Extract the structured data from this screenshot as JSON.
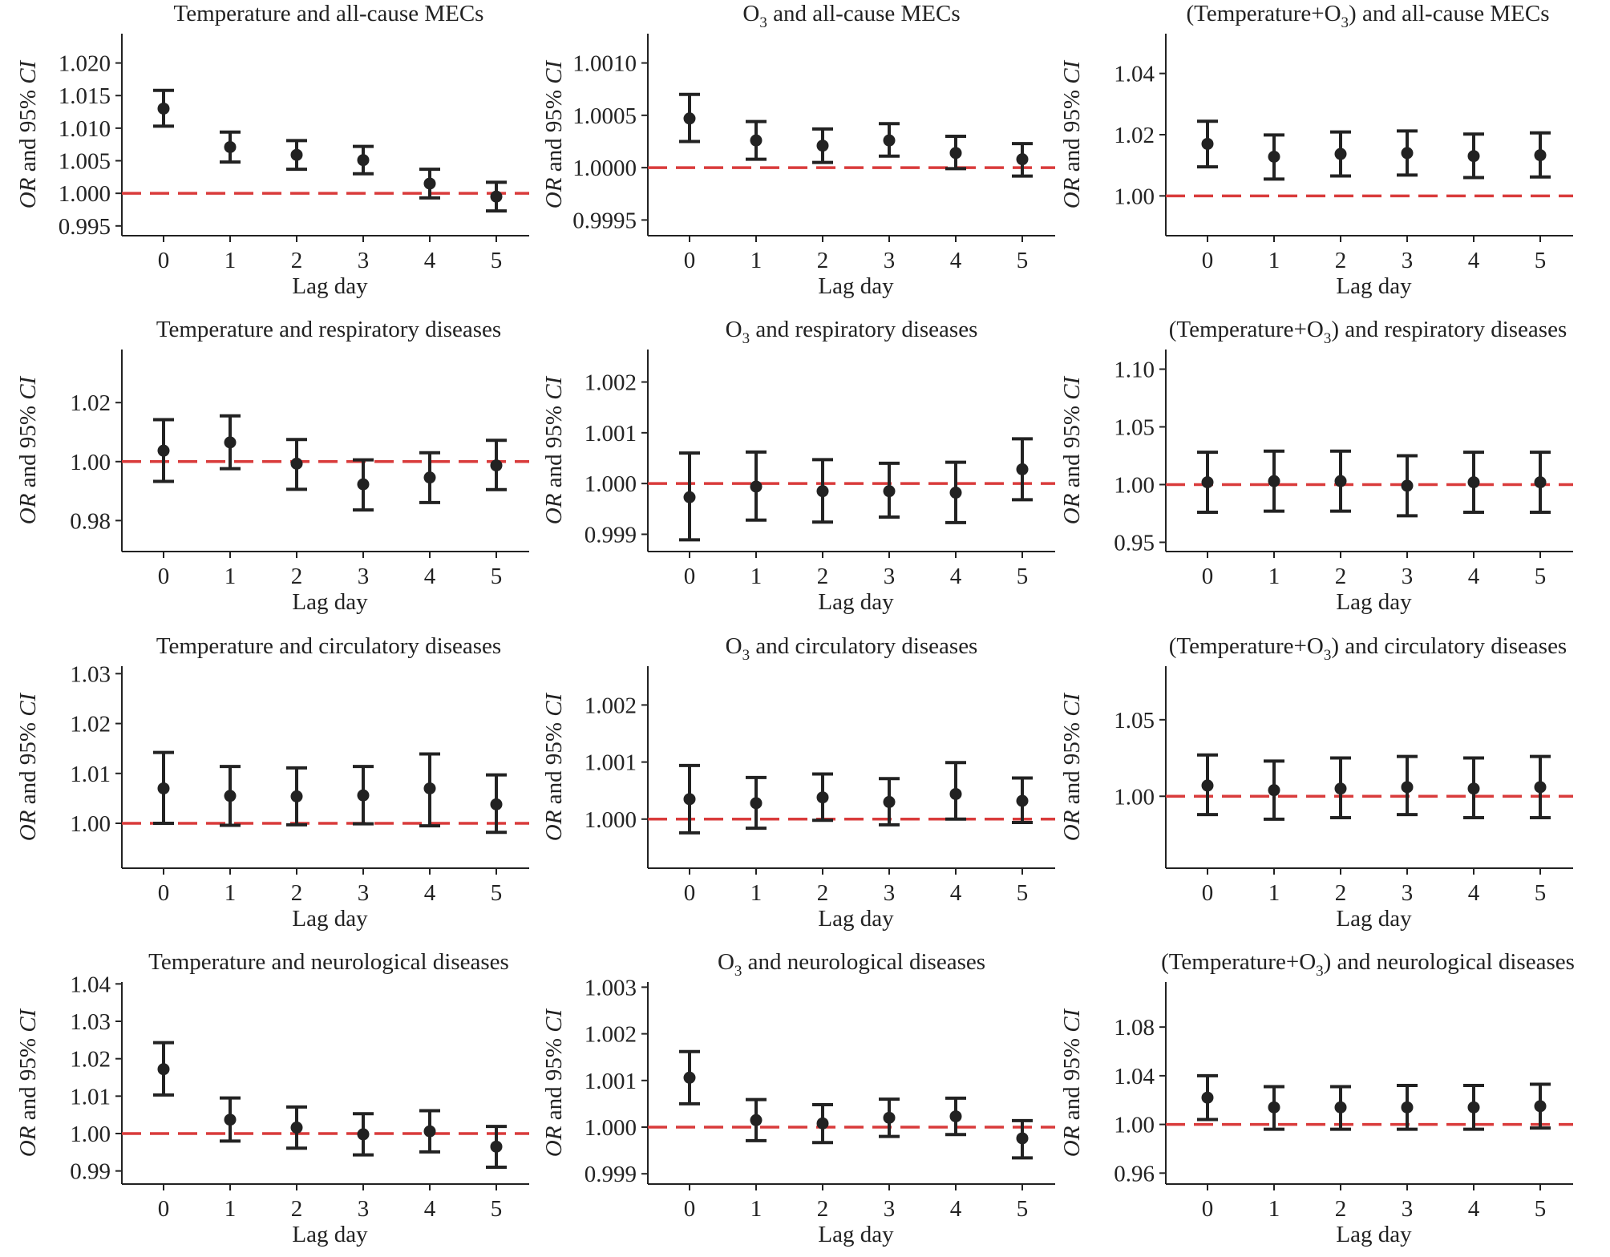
{
  "reference_color": "#d93b3b",
  "mark_color": "#222222",
  "chart_data": [
    {
      "type": "errorbar",
      "title": "Temperature and all-cause MECs",
      "xlabel": "Lag day",
      "ylabel_italic": "OR",
      "ylabel_mid": " and 95% ",
      "ylabel_italic2": "CI",
      "categories": [
        "0",
        "1",
        "2",
        "3",
        "4",
        "5"
      ],
      "ylim": [
        0.9935,
        1.0245
      ],
      "yticks": [
        "1.020",
        "1.015",
        "1.010",
        "1.005",
        "1.000",
        "0.995"
      ],
      "reference": 1.0,
      "values": [
        1.013,
        1.0071,
        1.0059,
        1.0051,
        1.0015,
        0.9995
      ],
      "lower": [
        1.0103,
        1.0048,
        1.0037,
        1.003,
        0.9993,
        0.9973
      ],
      "upper": [
        1.0158,
        1.0094,
        1.0081,
        1.0072,
        1.0037,
        1.0017
      ]
    },
    {
      "type": "errorbar",
      "title": "O3 and all-cause MECs",
      "title_pre": "O",
      "title_sub": "3",
      "title_post": " and all-cause MECs",
      "xlabel": "Lag day",
      "ylabel_italic": "OR",
      "ylabel_mid": " and 95% ",
      "ylabel_italic2": "CI",
      "categories": [
        "0",
        "1",
        "2",
        "3",
        "4",
        "5"
      ],
      "ylim": [
        0.99935,
        1.00128
      ],
      "yticks": [
        "1.0010",
        "1.0005",
        "1.0000",
        "0.9995"
      ],
      "reference": 1.0,
      "values": [
        1.00047,
        1.00026,
        1.00021,
        1.00026,
        1.00014,
        1.00008
      ],
      "lower": [
        1.00025,
        1.00008,
        1.00005,
        1.00011,
        0.99999,
        0.99992
      ],
      "upper": [
        1.0007,
        1.00044,
        1.00037,
        1.00042,
        1.0003,
        1.00023
      ]
    },
    {
      "type": "errorbar",
      "title": "(Temperature+O3) and all-cause MECs",
      "title_pre": "(Temperature+O",
      "title_sub": "3",
      "title_post": ") and all-cause MECs",
      "xlabel": "Lag day",
      "ylabel_italic": "OR",
      "ylabel_mid": " and 95% ",
      "ylabel_italic2": "CI",
      "categories": [
        "0",
        "1",
        "2",
        "3",
        "4",
        "5"
      ],
      "ylim": [
        0.987,
        1.053
      ],
      "yticks": [
        "1.04",
        "1.02",
        "1.00"
      ],
      "reference": 1.0,
      "values": [
        1.017,
        1.0128,
        1.0137,
        1.014,
        1.013,
        1.0133
      ],
      "lower": [
        1.0095,
        1.0055,
        1.0065,
        1.0068,
        1.006,
        1.0062
      ],
      "upper": [
        1.0244,
        1.0199,
        1.0209,
        1.0212,
        1.0202,
        1.0206
      ]
    },
    {
      "type": "errorbar",
      "title": "Temperature and respiratory diseases",
      "xlabel": "Lag day",
      "ylabel_italic": "OR",
      "ylabel_mid": " and 95% ",
      "ylabel_italic2": "CI",
      "categories": [
        "0",
        "1",
        "2",
        "3",
        "4",
        "5"
      ],
      "ylim": [
        0.9695,
        1.038
      ],
      "yticks": [
        "1.02",
        "1.00",
        "0.98"
      ],
      "reference": 1.0,
      "values": [
        1.0037,
        1.0065,
        0.9993,
        0.9923,
        0.9946,
        0.9987
      ],
      "lower": [
        0.9933,
        0.9976,
        0.9906,
        0.9836,
        0.9861,
        0.9905
      ],
      "upper": [
        1.0142,
        1.0155,
        1.0075,
        1.0006,
        1.003,
        1.0072
      ]
    },
    {
      "type": "errorbar",
      "title": "O3 and respiratory diseases",
      "title_pre": "O",
      "title_sub": "3",
      "title_post": " and respiratory diseases",
      "xlabel": "Lag day",
      "ylabel_italic": "OR",
      "ylabel_mid": " and 95% ",
      "ylabel_italic2": "CI",
      "categories": [
        "0",
        "1",
        "2",
        "3",
        "4",
        "5"
      ],
      "ylim": [
        0.99866,
        1.00264
      ],
      "yticks": [
        "1.002",
        "1.001",
        "1.000",
        "0.999"
      ],
      "reference": 1.0,
      "values": [
        0.99973,
        0.99994,
        0.99985,
        0.99985,
        0.99982,
        1.00028
      ],
      "lower": [
        0.99889,
        0.99928,
        0.99924,
        0.99934,
        0.99923,
        0.99968
      ],
      "upper": [
        1.0006,
        1.00062,
        1.00047,
        1.0004,
        1.00042,
        1.00088
      ]
    },
    {
      "type": "errorbar",
      "title": "(Temperature+O3) and respiratory diseases",
      "title_pre": "(Temperature+O",
      "title_sub": "3",
      "title_post": ") and respiratory diseases",
      "xlabel": "Lag day",
      "ylabel_italic": "OR",
      "ylabel_mid": " and 95% ",
      "ylabel_italic2": "CI",
      "categories": [
        "0",
        "1",
        "2",
        "3",
        "4",
        "5"
      ],
      "ylim": [
        0.942,
        1.117
      ],
      "yticks": [
        "1.10",
        "1.05",
        "1.00",
        "0.95"
      ],
      "reference": 1.0,
      "values": [
        1.002,
        1.003,
        1.003,
        0.999,
        1.002,
        1.002
      ],
      "lower": [
        0.976,
        0.977,
        0.977,
        0.973,
        0.976,
        0.976
      ],
      "upper": [
        1.028,
        1.029,
        1.029,
        1.025,
        1.028,
        1.028
      ]
    },
    {
      "type": "errorbar",
      "title": "Temperature and circulatory diseases",
      "xlabel": "Lag day",
      "ylabel_italic": "OR",
      "ylabel_mid": " and 95% ",
      "ylabel_italic2": "CI",
      "categories": [
        "0",
        "1",
        "2",
        "3",
        "4",
        "5"
      ],
      "ylim": [
        0.991,
        1.0315
      ],
      "yticks": [
        "1.03",
        "1.02",
        "1.01",
        "1.00"
      ],
      "reference": 1.0,
      "values": [
        1.007,
        1.0055,
        1.0054,
        1.0056,
        1.007,
        1.0038
      ],
      "lower": [
        1.0,
        0.9996,
        0.9997,
        0.9999,
        0.9995,
        0.9982
      ],
      "upper": [
        1.0142,
        1.0114,
        1.0111,
        1.0114,
        1.0139,
        1.0097
      ]
    },
    {
      "type": "errorbar",
      "title": "O3 and circulatory diseases",
      "title_pre": "O",
      "title_sub": "3",
      "title_post": " and circulatory diseases",
      "xlabel": "Lag day",
      "ylabel_italic": "OR",
      "ylabel_mid": " and 95% ",
      "ylabel_italic2": "CI",
      "categories": [
        "0",
        "1",
        "2",
        "3",
        "4",
        "5"
      ],
      "ylim": [
        0.99914,
        1.00268
      ],
      "yticks": [
        "1.002",
        "1.001",
        "1.000"
      ],
      "reference": 1.0,
      "values": [
        1.00035,
        1.00028,
        1.00038,
        1.0003,
        1.00044,
        1.00032
      ],
      "lower": [
        0.99976,
        0.99984,
        0.99998,
        0.9999,
        1.0,
        0.99994
      ],
      "upper": [
        1.00094,
        1.00073,
        1.00079,
        1.00071,
        1.00099,
        1.00072
      ]
    },
    {
      "type": "errorbar",
      "title": "(Temperature+O3) and circulatory diseases",
      "title_pre": "(Temperature+O",
      "title_sub": "3",
      "title_post": ") and circulatory diseases",
      "xlabel": "Lag day",
      "ylabel_italic": "OR",
      "ylabel_mid": " and 95% ",
      "ylabel_italic2": "CI",
      "categories": [
        "0",
        "1",
        "2",
        "3",
        "4",
        "5"
      ],
      "ylim": [
        0.953,
        1.085
      ],
      "yticks": [
        "1.05",
        "1.00"
      ],
      "reference": 1.0,
      "values": [
        1.007,
        1.004,
        1.005,
        1.006,
        1.005,
        1.006
      ],
      "lower": [
        0.988,
        0.985,
        0.986,
        0.988,
        0.986,
        0.986
      ],
      "upper": [
        1.027,
        1.023,
        1.025,
        1.026,
        1.025,
        1.026
      ]
    },
    {
      "type": "errorbar",
      "title": "Temperature and neurological diseases",
      "xlabel": "Lag day",
      "ylabel_italic": "OR",
      "ylabel_mid": " and 95% ",
      "ylabel_italic2": "CI",
      "categories": [
        "0",
        "1",
        "2",
        "3",
        "4",
        "5"
      ],
      "ylim": [
        0.9865,
        1.0405
      ],
      "yticks": [
        "1.04",
        "1.03",
        "1.02",
        "1.01",
        "1.00",
        "0.99"
      ],
      "reference": 1.0,
      "values": [
        1.0172,
        1.0037,
        1.0016,
        0.9998,
        1.0006,
        0.9965
      ],
      "lower": [
        1.0103,
        0.998,
        0.9961,
        0.9943,
        0.9951,
        0.991
      ],
      "upper": [
        1.0243,
        1.0095,
        1.0071,
        1.0053,
        1.0061,
        1.0019
      ]
    },
    {
      "type": "errorbar",
      "title": "O3 and neurological diseases",
      "title_pre": "O",
      "title_sub": "3",
      "title_post": " and neurological diseases",
      "xlabel": "Lag day",
      "ylabel_italic": "OR",
      "ylabel_mid": " and 95% ",
      "ylabel_italic2": "CI",
      "categories": [
        "0",
        "1",
        "2",
        "3",
        "4",
        "5"
      ],
      "ylim": [
        0.99878,
        1.00311
      ],
      "yticks": [
        "1.003",
        "1.002",
        "1.001",
        "1.000",
        "0.999"
      ],
      "reference": 1.0,
      "values": [
        1.00106,
        1.00015,
        1.00008,
        1.0002,
        1.00023,
        0.99976
      ],
      "lower": [
        1.0005,
        0.99971,
        0.99967,
        0.9998,
        0.99984,
        0.99934
      ],
      "upper": [
        1.00162,
        1.00059,
        1.00048,
        1.0006,
        1.00062,
        1.00014
      ]
    },
    {
      "type": "errorbar",
      "title": "(Temperature+O3) and neurological diseases",
      "title_pre": "(Temperature+O",
      "title_sub": "3",
      "title_post": ") and neurological diseases",
      "xlabel": "Lag day",
      "ylabel_italic": "OR",
      "ylabel_mid": " and 95% ",
      "ylabel_italic2": "CI",
      "categories": [
        "0",
        "1",
        "2",
        "3",
        "4",
        "5"
      ],
      "ylim": [
        0.951,
        1.117
      ],
      "yticks": [
        "1.08",
        "1.04",
        "1.00",
        "0.96"
      ],
      "reference": 1.0,
      "values": [
        1.022,
        1.014,
        1.014,
        1.014,
        1.014,
        1.015
      ],
      "lower": [
        1.004,
        0.996,
        0.996,
        0.996,
        0.996,
        0.997
      ],
      "upper": [
        1.04,
        1.031,
        1.031,
        1.032,
        1.032,
        1.033
      ]
    }
  ]
}
